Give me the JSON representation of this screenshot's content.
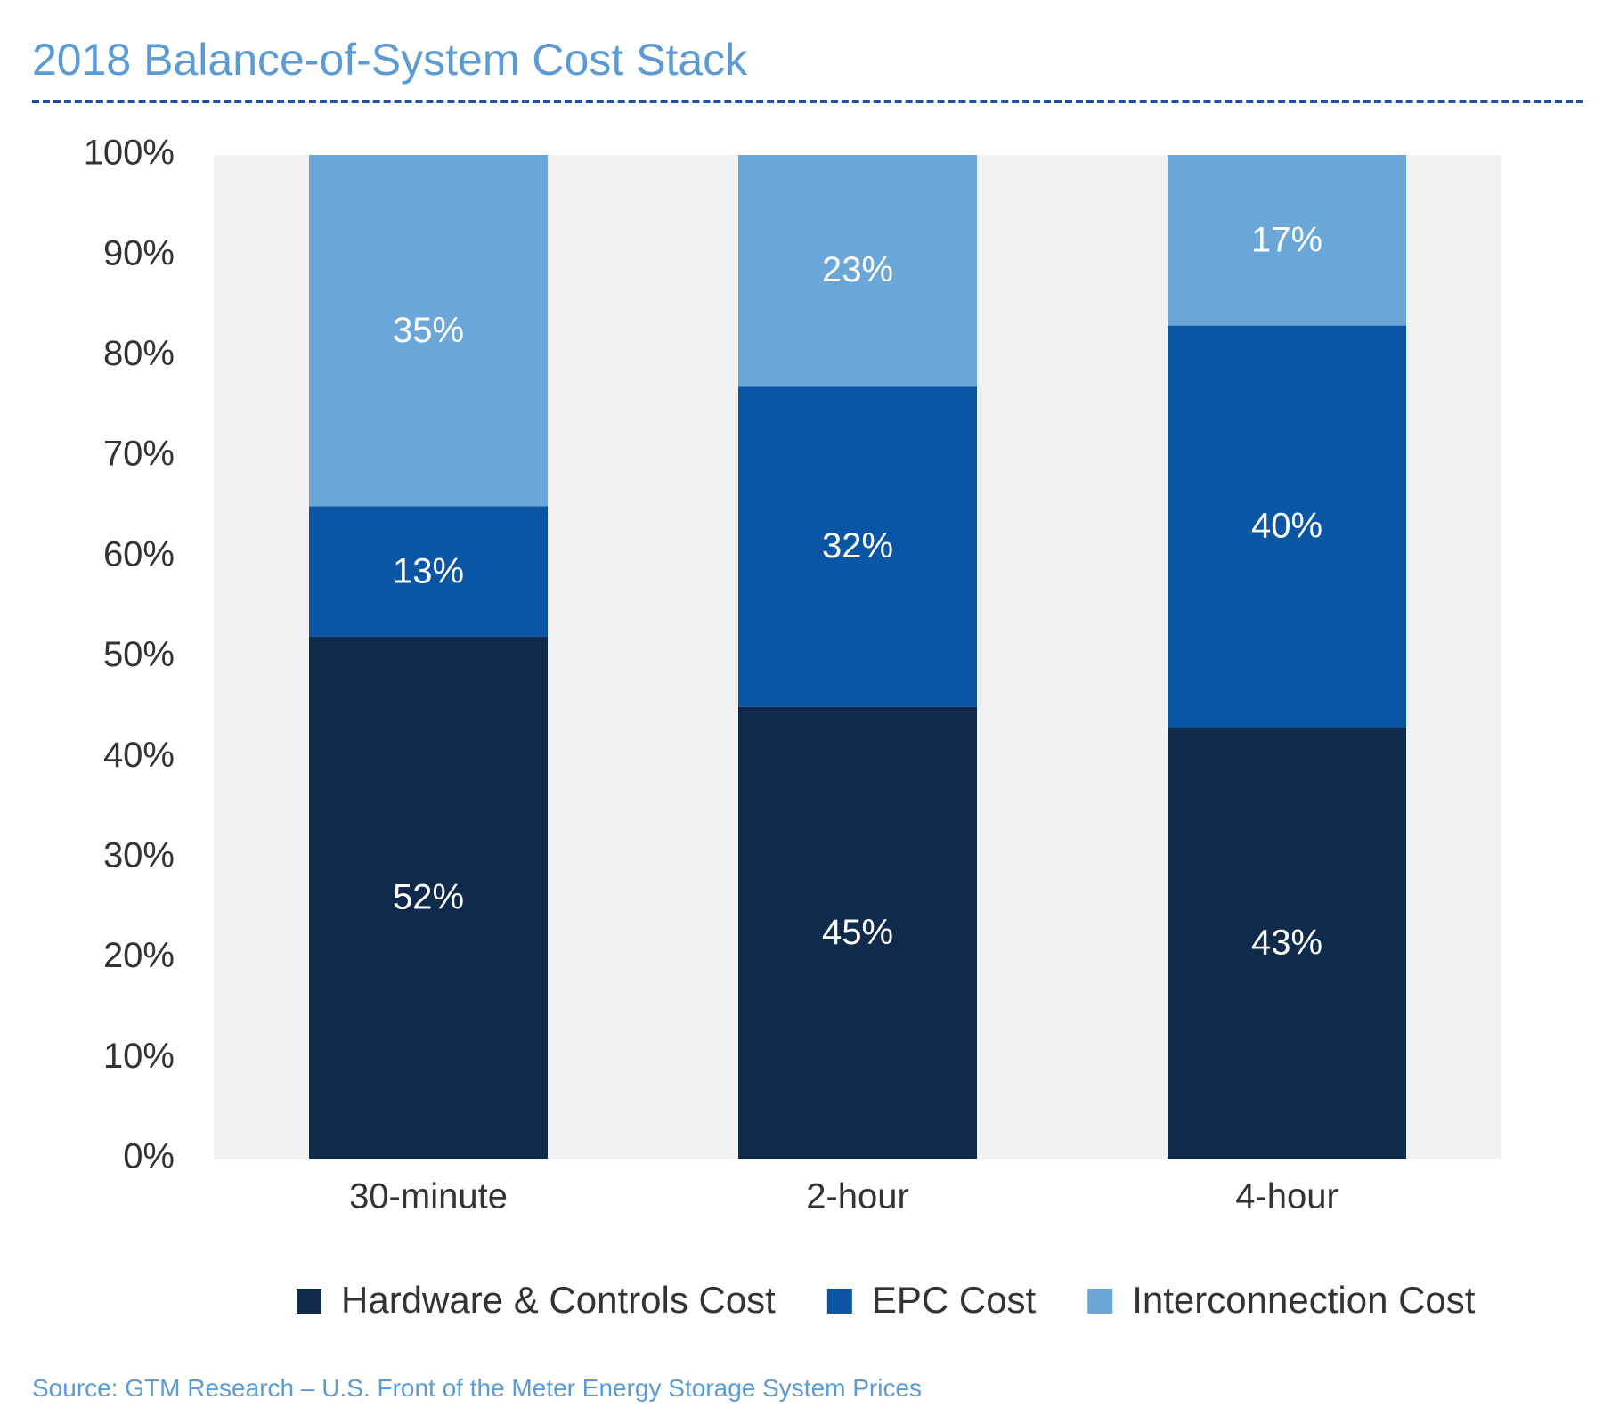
{
  "chart_data": {
    "type": "bar",
    "stacked": true,
    "title": "2018 Balance-of-System Cost Stack",
    "categories": [
      "30-minute",
      "2-hour",
      "4-hour"
    ],
    "series": [
      {
        "name": "Hardware & Controls Cost",
        "values": [
          52,
          45,
          43
        ],
        "labels": [
          "52%",
          "45%",
          "43%"
        ],
        "color": "#0f2a4a"
      },
      {
        "name": "EPC Cost",
        "values": [
          13,
          32,
          40
        ],
        "labels": [
          "13%",
          "32%",
          "40%"
        ],
        "color": "#0b55a5"
      },
      {
        "name": "Interconnection Cost",
        "values": [
          35,
          23,
          17
        ],
        "labels": [
          "35%",
          "23%",
          "17%"
        ],
        "color": "#6aa7d8"
      }
    ],
    "ylim": [
      0,
      100
    ],
    "yticks": [
      "0%",
      "10%",
      "20%",
      "30%",
      "40%",
      "50%",
      "60%",
      "70%",
      "80%",
      "90%",
      "100%"
    ],
    "xlabel": "",
    "ylabel": "",
    "legend": "bottom",
    "grid": false,
    "plot_background": "#f2f2f2"
  },
  "source": "Source: GTM Research – U.S. Front of the Meter Energy Storage System Prices"
}
